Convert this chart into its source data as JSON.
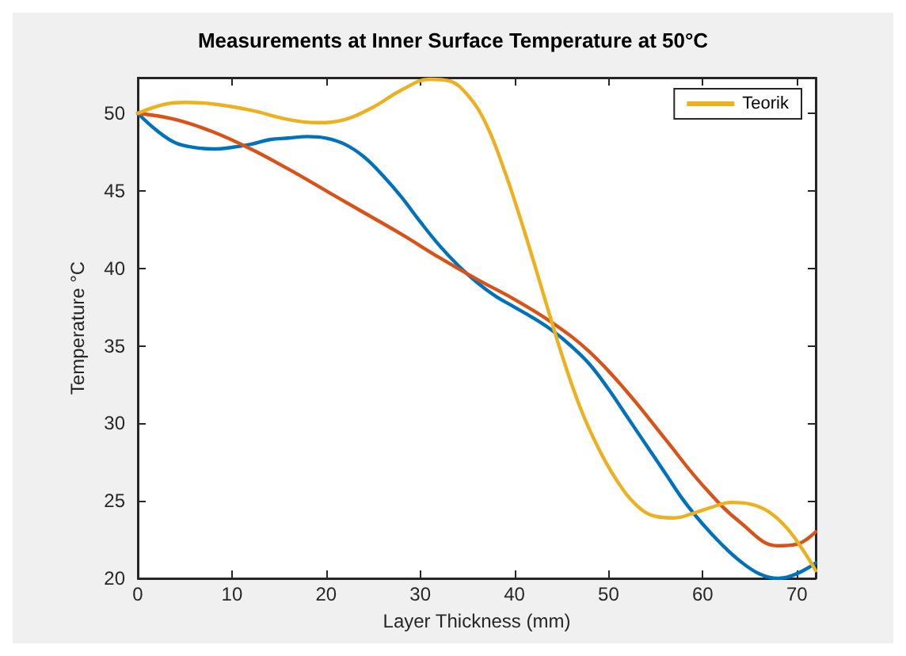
{
  "chart_data": {
    "type": "line",
    "title": "Measurements at Inner Surface Temperature at 50°C",
    "xlabel": "Layer Thickness (mm)",
    "ylabel": "Temperature °C",
    "xlim": [
      0,
      72
    ],
    "xticks": [
      0,
      10,
      20,
      30,
      40,
      50,
      60,
      70
    ],
    "ylim": [
      20,
      52.3
    ],
    "yticks": [
      20,
      25,
      30,
      35,
      40,
      45,
      50
    ],
    "grid": false,
    "legend": "top right",
    "marker": "none",
    "line_style": "solid",
    "series": [
      {
        "color": "#0072bd",
        "x": [
          0,
          2,
          4,
          6,
          8,
          10,
          12,
          14,
          16,
          18,
          20,
          22,
          24,
          26,
          28,
          30,
          32,
          34,
          36,
          38,
          40,
          42,
          44,
          46,
          48,
          50,
          52,
          54,
          56,
          58,
          60,
          62,
          64,
          66,
          68,
          70,
          72
        ],
        "values": [
          50,
          48.9,
          48.1,
          47.8,
          47.7,
          47.8,
          48,
          48.3,
          48.4,
          48.5,
          48.4,
          48,
          47.2,
          46,
          44.6,
          43,
          41.5,
          40.2,
          39.1,
          38.2,
          37.5,
          36.8,
          36,
          35,
          33.8,
          32.2,
          30.4,
          28.6,
          26.8,
          25,
          23.5,
          22.2,
          21.1,
          20.3,
          20,
          20.3,
          21
        ]
      },
      {
        "color": "#d95319",
        "x": [
          0,
          4,
          8,
          12,
          16,
          20,
          24,
          28,
          32,
          36,
          40,
          44,
          48,
          52,
          56,
          60,
          64,
          68,
          70,
          72
        ],
        "values": [
          50,
          49.6,
          48.8,
          47.7,
          46.4,
          45,
          43.6,
          42.2,
          40.7,
          39.3,
          38,
          36.5,
          34.6,
          32,
          29,
          26,
          23.6,
          22.1,
          22.2,
          23
        ]
      },
      {
        "name": "Teorik",
        "color": "#edb120",
        "x": [
          0,
          3,
          5,
          8,
          12,
          16,
          19,
          22,
          25,
          28,
          31,
          33,
          35,
          37,
          39,
          41,
          43,
          45,
          47,
          49,
          51,
          53,
          55,
          57,
          59,
          61,
          63,
          65,
          67,
          69,
          71,
          72
        ],
        "values": [
          50,
          50.6,
          50.7,
          50.6,
          50.2,
          49.6,
          49.4,
          49.6,
          50.4,
          51.5,
          52.2,
          52.1,
          51.2,
          49.3,
          46.2,
          42.5,
          38.5,
          34.5,
          31,
          28.3,
          26.2,
          24.7,
          24,
          23.9,
          24.2,
          24.6,
          24.9,
          24.8,
          24.3,
          23.2,
          21.5,
          20.5
        ]
      }
    ]
  }
}
